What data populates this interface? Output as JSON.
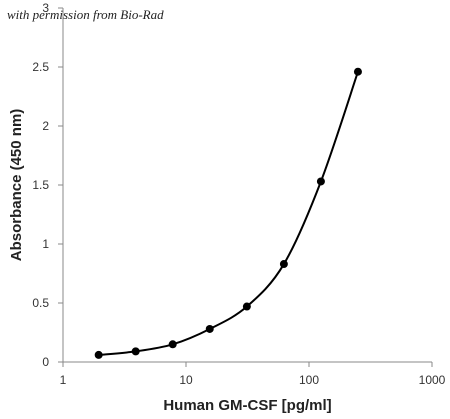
{
  "attribution": "with permission from Bio-Rad",
  "chart_data": {
    "type": "scatter",
    "xlabel": "Human GM-CSF [pg/ml]",
    "ylabel": "Absorbance (450 nm)",
    "xscale": "log",
    "xlim": [
      1,
      1000
    ],
    "ylim": [
      0,
      3
    ],
    "xticks": [
      "1",
      "10",
      "100",
      "1000"
    ],
    "yticks": [
      "0",
      "0.5",
      "1",
      "1.5",
      "2",
      "2.5",
      "3"
    ],
    "grid": false,
    "legend": "none",
    "series": [
      {
        "x": [
          1.95,
          3.9,
          7.8,
          15.6,
          31.25,
          62.5,
          125,
          250
        ],
        "y": [
          0.06,
          0.09,
          0.15,
          0.28,
          0.47,
          0.83,
          1.53,
          2.46
        ],
        "marker": "circle",
        "line": "smooth",
        "color": "#000000"
      }
    ]
  }
}
